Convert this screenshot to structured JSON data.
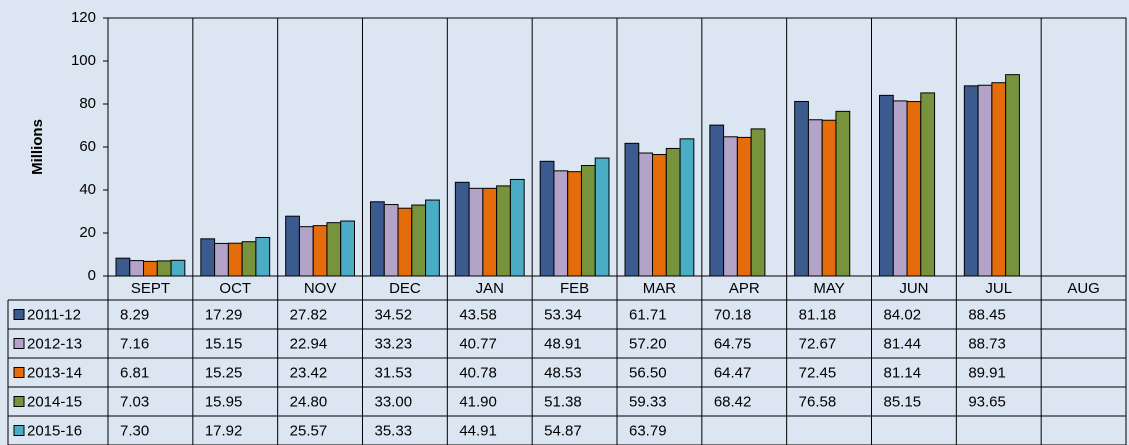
{
  "chart_data": {
    "type": "bar",
    "y_label": "Millions",
    "categories": [
      "SEPT",
      "OCT",
      "NOV",
      "DEC",
      "JAN",
      "FEB",
      "MAR",
      "APR",
      "MAY",
      "JUN",
      "JUL",
      "AUG"
    ],
    "ylim": [
      0,
      120
    ],
    "yticks": [
      0,
      20,
      40,
      60,
      80,
      100,
      120
    ],
    "grid": false,
    "series": [
      {
        "name": "2011-12",
        "color": "#3b5b8e",
        "values": [
          8.29,
          17.29,
          27.82,
          34.52,
          43.58,
          53.34,
          61.71,
          70.18,
          81.18,
          84.02,
          88.45,
          null
        ],
        "value_labels": [
          "8.29",
          "17.29",
          "27.82",
          "34.52",
          "43.58",
          "53.34",
          "61.71",
          "70.18",
          "81.18",
          "84.02",
          "88.45",
          null
        ]
      },
      {
        "name": "2012-13",
        "color": "#b4a3c8",
        "values": [
          7.16,
          15.15,
          22.94,
          33.23,
          40.77,
          48.91,
          57.2,
          64.75,
          72.67,
          81.44,
          88.73,
          null
        ],
        "value_labels": [
          "7.16",
          "15.15",
          "22.94",
          "33.23",
          "40.77",
          "48.91",
          "57.20",
          "64.75",
          "72.67",
          "81.44",
          "88.73",
          null
        ]
      },
      {
        "name": "2013-14",
        "color": "#e46c0a",
        "values": [
          6.81,
          15.25,
          23.42,
          31.53,
          40.78,
          48.53,
          56.5,
          64.47,
          72.45,
          81.14,
          89.91,
          null
        ],
        "value_labels": [
          "6.81",
          "15.25",
          "23.42",
          "31.53",
          "40.78",
          "48.53",
          "56.50",
          "64.47",
          "72.45",
          "81.14",
          "89.91",
          null
        ]
      },
      {
        "name": "2014-15",
        "color": "#77933c",
        "values": [
          7.03,
          15.95,
          24.8,
          33.0,
          41.9,
          51.38,
          59.33,
          68.42,
          76.58,
          85.15,
          93.65,
          null
        ],
        "value_labels": [
          "7.03",
          "15.95",
          "24.80",
          "33.00",
          "41.90",
          "51.38",
          "59.33",
          "68.42",
          "76.58",
          "85.15",
          "93.65",
          null
        ]
      },
      {
        "name": "2015-16",
        "color": "#4bacc6",
        "values": [
          7.3,
          17.92,
          25.57,
          35.33,
          44.91,
          54.87,
          63.79,
          null,
          null,
          null,
          null,
          null
        ],
        "value_labels": [
          "7.30",
          "17.92",
          "25.57",
          "35.33",
          "44.91",
          "54.87",
          "63.79",
          null,
          null,
          null,
          null,
          null
        ]
      }
    ]
  }
}
